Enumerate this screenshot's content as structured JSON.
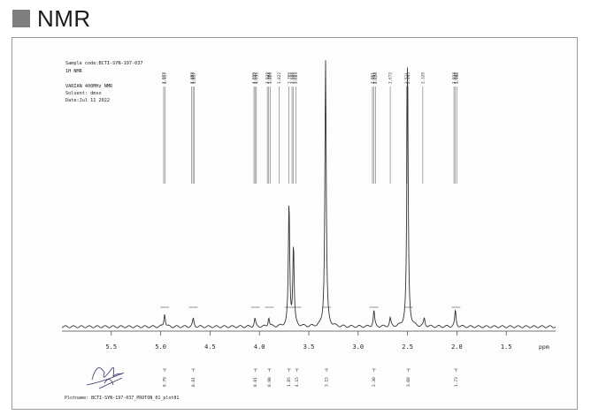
{
  "heading": {
    "title": "NMR"
  },
  "header_info": {
    "sample": "Sample code:BCTI-SYN-197-037",
    "type": "1H NMR",
    "instrument": "VARIAN 400MHz NMR",
    "solvent": "Solvent: dmso",
    "date": "Date:Jul 11 2022"
  },
  "plotname": "Plotname: BCTI-SYN-197-037_PROTON_01_plot01",
  "chart_data": {
    "type": "line",
    "xlabel": "ppm",
    "xlim": [
      6.0,
      1.0
    ],
    "xticks": [
      "5.5",
      "5.0",
      "4.5",
      "4.0",
      "3.5",
      "3.0",
      "2.5",
      "2.0",
      "1.5"
    ],
    "peak_labels": [
      {
        "ppm": 4.97,
        "text": "4.972"
      },
      {
        "ppm": 4.958,
        "text": "4.957"
      },
      {
        "ppm": 4.685,
        "text": "4.692"
      },
      {
        "ppm": 4.673,
        "text": "4.673"
      },
      {
        "ppm": 4.66,
        "text": "4.657"
      },
      {
        "ppm": 4.055,
        "text": "4.059"
      },
      {
        "ppm": 4.045,
        "text": "4.047"
      },
      {
        "ppm": 4.03,
        "text": "4.035"
      },
      {
        "ppm": 3.92,
        "text": "3.919"
      },
      {
        "ppm": 3.905,
        "text": "3.904"
      },
      {
        "ppm": 3.89,
        "text": "3.889"
      },
      {
        "ppm": 3.8,
        "text": "3.822"
      },
      {
        "ppm": 3.7,
        "text": "3.709"
      },
      {
        "ppm": 3.67,
        "text": "3.698"
      },
      {
        "ppm": 3.655,
        "text": "3.693"
      },
      {
        "ppm": 3.63,
        "text": "3.603"
      },
      {
        "ppm": 2.855,
        "text": "2.861"
      },
      {
        "ppm": 2.84,
        "text": "2.843"
      },
      {
        "ppm": 2.825,
        "text": "2.826"
      },
      {
        "ppm": 2.675,
        "text": "2.672"
      },
      {
        "ppm": 2.51,
        "text": "2.511"
      },
      {
        "ppm": 2.495,
        "text": "2.495"
      },
      {
        "ppm": 2.345,
        "text": "2.329"
      },
      {
        "ppm": 2.03,
        "text": "2.034"
      },
      {
        "ppm": 2.015,
        "text": "2.015"
      },
      {
        "ppm": 1.998,
        "text": "1.998"
      }
    ],
    "integrals": [
      {
        "ppm": 4.96,
        "value": "0.79"
      },
      {
        "ppm": 4.67,
        "value": "0.81"
      },
      {
        "ppm": 4.04,
        "value": "0.81"
      },
      {
        "ppm": 3.9,
        "value": "0.90"
      },
      {
        "ppm": 3.7,
        "value": "1.85"
      },
      {
        "ppm": 3.62,
        "value": "4.15"
      },
      {
        "ppm": 3.32,
        "value": "3.15"
      },
      {
        "ppm": 2.84,
        "value": "2.30"
      },
      {
        "ppm": 2.49,
        "value": "3.08"
      },
      {
        "ppm": 2.01,
        "value": "1.73"
      }
    ],
    "peaks": [
      {
        "ppm": 4.96,
        "height": 0.05
      },
      {
        "ppm": 4.67,
        "height": 0.03
      },
      {
        "ppm": 4.045,
        "height": 0.03
      },
      {
        "ppm": 3.905,
        "height": 0.035
      },
      {
        "ppm": 3.7,
        "height": 0.46
      },
      {
        "ppm": 3.655,
        "height": 0.3
      },
      {
        "ppm": 3.33,
        "height": 1.0
      },
      {
        "ppm": 2.84,
        "height": 0.06
      },
      {
        "ppm": 2.675,
        "height": 0.03
      },
      {
        "ppm": 2.5,
        "height": 0.98
      },
      {
        "ppm": 2.33,
        "height": 0.03
      },
      {
        "ppm": 2.015,
        "height": 0.06
      }
    ]
  }
}
